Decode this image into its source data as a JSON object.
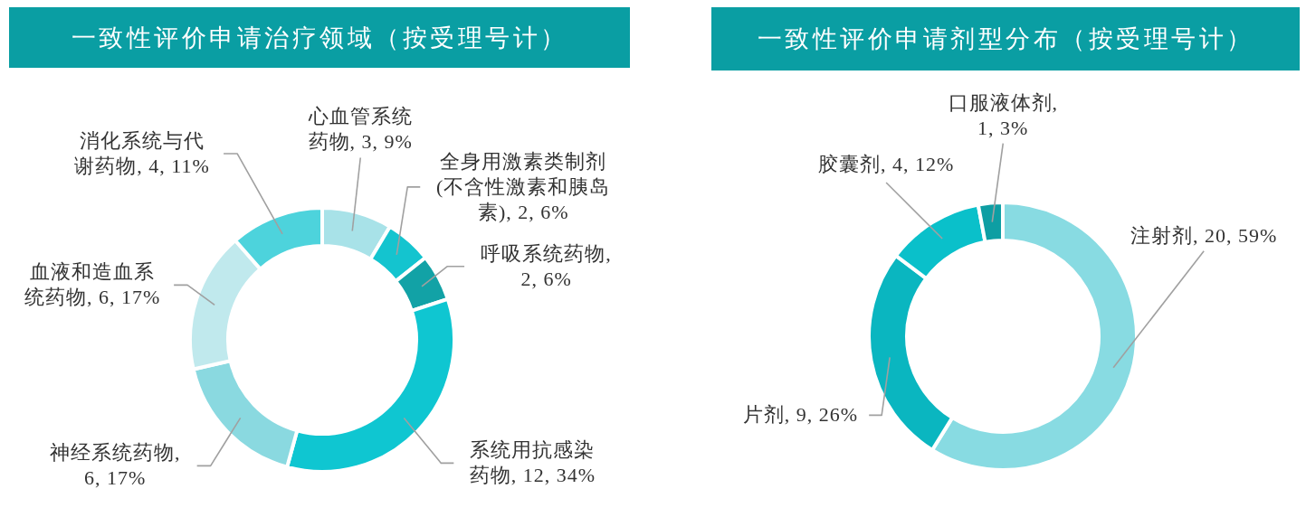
{
  "chart_data": [
    {
      "type": "donut",
      "title": "一致性评价申请治疗领域（按受理号计）",
      "categories": [
        "心血管系统药物",
        "全身用激素类制剂(不含性激素和胰岛素)",
        "呼吸系统药物",
        "系统用抗感染药物",
        "神经系统药物",
        "血液和造血系统药物",
        "消化系统与代谢药物"
      ],
      "values": [
        3,
        2,
        2,
        12,
        6,
        6,
        4
      ],
      "colors": [
        "#a8e2e8",
        "#14c4cf",
        "#12a2a6",
        "#0fc6d1",
        "#8ad9e0",
        "#c0e9ed",
        "#4dd3dc"
      ],
      "value_labels": [
        ", 3, 9%",
        ", 2, 6%",
        ", 2, 6%",
        ", 12, 34%",
        ", 6, 17%",
        ", 6, 17%",
        ", 4, 11%"
      ]
    },
    {
      "type": "donut",
      "title": "一致性评价申请剂型分布（按受理号计）",
      "categories": [
        "注射剂",
        "片剂",
        "胶囊剂",
        "口服液体剂"
      ],
      "values": [
        20,
        9,
        4,
        1
      ],
      "colors": [
        "#88dbe2",
        "#0ab6c0",
        "#0ac0ca",
        "#0e9ea3"
      ],
      "value_labels": [
        ", 20, 59%",
        ", 9, 26%",
        ", 4, 12%",
        ", 1, 3%"
      ]
    }
  ]
}
